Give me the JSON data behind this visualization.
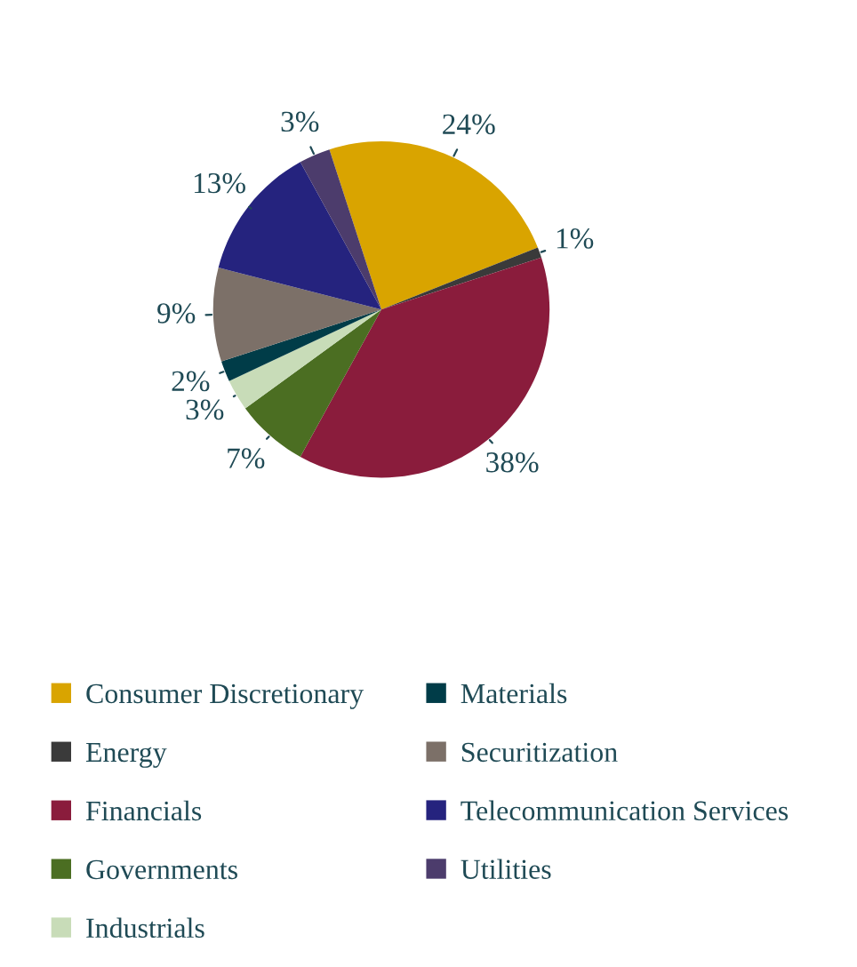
{
  "chart_data": {
    "type": "pie",
    "categories": [
      "Consumer Discretionary",
      "Energy",
      "Financials",
      "Governments",
      "Industrials",
      "Materials",
      "Securitization",
      "Telecommunication Services",
      "Utilities"
    ],
    "values": [
      24,
      1,
      38,
      7,
      3,
      2,
      9,
      13,
      3
    ],
    "colors": [
      "#d9a400",
      "#3a3a3a",
      "#8a1c3c",
      "#4b6e22",
      "#c8dcb8",
      "#003c48",
      "#7c7068",
      "#25237e",
      "#4c3c6c"
    ],
    "value_labels": [
      "24%",
      "1%",
      "38%",
      "7%",
      "3%",
      "2%",
      "9%",
      "13%",
      "3%"
    ],
    "legend": "bottom"
  }
}
